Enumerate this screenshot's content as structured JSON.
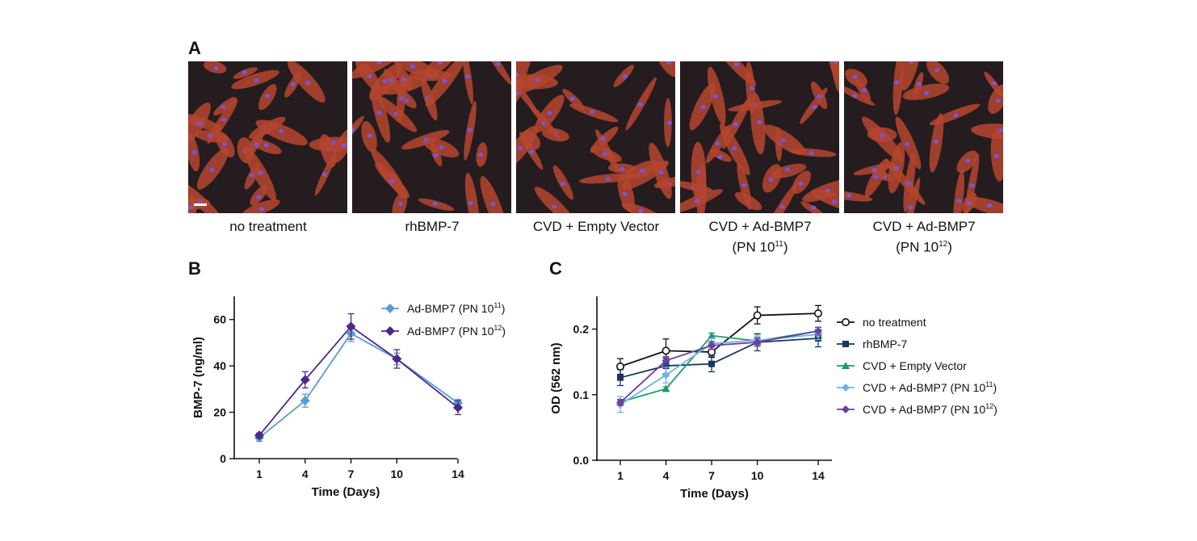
{
  "figure": {
    "panel_a_letter": "A",
    "panel_b_letter": "B",
    "panel_c_letter": "C"
  },
  "panel_a": {
    "images": [
      {
        "label": "no treatment",
        "sub": ""
      },
      {
        "label": "rhBMP-7",
        "sub": ""
      },
      {
        "label": "CVD + Empty Vector",
        "sub": ""
      },
      {
        "label": "CVD + Ad-BMP7",
        "sub": "(PN 10",
        "sup": "11",
        "close": ")"
      },
      {
        "label": "CVD + Ad-BMP7",
        "sub": "(PN 10",
        "sup": "12",
        "close": ")"
      }
    ],
    "colors": {
      "cell": "#b5452f",
      "nucleus": "#7a55d6",
      "background": "#241c1f"
    }
  },
  "chart_data": [
    {
      "panel": "B",
      "type": "line",
      "title": "",
      "xlabel": "Time (Days)",
      "ylabel": "BMP-7 (ng/ml)",
      "categories": [
        "1",
        "4",
        "7",
        "10",
        "14"
      ],
      "x": [
        1,
        4,
        7,
        10,
        14
      ],
      "ylim": [
        0,
        70
      ],
      "yticks": [
        0,
        20,
        40,
        60
      ],
      "legend_position": "top-right",
      "series": [
        {
          "name": "Ad-BMP7 (PN 10",
          "sup": "11",
          "close": ")",
          "marker": "diamond",
          "color": "#5b9bd5",
          "values": [
            9,
            25,
            54,
            43,
            24
          ],
          "errors": [
            1.5,
            2.8,
            3.5,
            2.5,
            1.5
          ]
        },
        {
          "name": "Ad-BMP7 (PN 10",
          "sup": "12",
          "close": ")",
          "marker": "diamond",
          "color": "#4b2a87",
          "values": [
            10,
            34,
            57,
            43,
            22
          ],
          "errors": [
            1.0,
            3.5,
            5.5,
            4.0,
            3.0
          ]
        }
      ]
    },
    {
      "panel": "C",
      "type": "line",
      "title": "",
      "xlabel": "Time (Days)",
      "ylabel": "OD (562 nm)",
      "categories": [
        "1",
        "4",
        "7",
        "10",
        "14"
      ],
      "x": [
        1,
        4,
        7,
        10,
        14
      ],
      "ylim": [
        0,
        0.25
      ],
      "yticks": [
        0.0,
        0.1,
        0.2
      ],
      "ytick_labels": [
        "0.0",
        "0.1",
        "0.2"
      ],
      "legend_position": "right",
      "series": [
        {
          "name": "no treatment",
          "sup": "",
          "close": "",
          "marker": "circle-open",
          "color": "#111111",
          "values": [
            0.143,
            0.167,
            0.165,
            0.221,
            0.224
          ],
          "errors": [
            0.012,
            0.018,
            0.008,
            0.013,
            0.012
          ]
        },
        {
          "name": "rhBMP-7",
          "sup": "",
          "close": "",
          "marker": "square",
          "color": "#17375e",
          "values": [
            0.126,
            0.144,
            0.147,
            0.18,
            0.186
          ],
          "errors": [
            0.012,
            0.012,
            0.012,
            0.013,
            0.013
          ]
        },
        {
          "name": "CVD + Empty Vector",
          "sup": "",
          "close": "",
          "marker": "triangle",
          "color": "#1e9b6a",
          "values": [
            0.089,
            0.109,
            0.19,
            0.182,
            0.197
          ],
          "errors": [
            0.004,
            0.003,
            0.004,
            0.006,
            0.006
          ]
        },
        {
          "name": "CVD + Ad-BMP7 (PN 10",
          "sup": "11",
          "close": ")",
          "marker": "diamond",
          "color": "#6fb2e4",
          "values": [
            0.085,
            0.13,
            0.178,
            0.183,
            0.192
          ],
          "errors": [
            0.012,
            0.012,
            0.008,
            0.008,
            0.008
          ]
        },
        {
          "name": "CVD + Ad-BMP7 (PN 10",
          "sup": "12",
          "close": ")",
          "marker": "diamond",
          "color": "#6a3fa0",
          "values": [
            0.088,
            0.152,
            0.175,
            0.18,
            0.197
          ],
          "errors": [
            0.004,
            0.006,
            0.006,
            0.006,
            0.006
          ]
        }
      ]
    }
  ]
}
